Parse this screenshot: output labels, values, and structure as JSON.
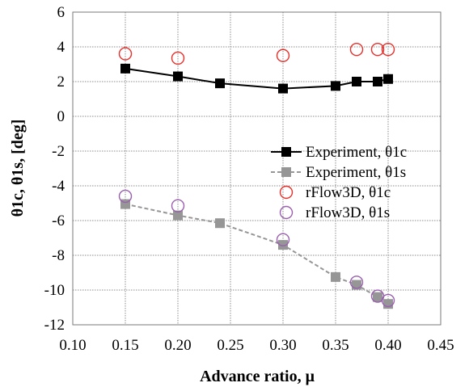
{
  "chart_data": {
    "type": "scatter",
    "xlabel": "Advance ratio, μ",
    "ylabel": "θ1c, θ1s, [deg]",
    "xlim": [
      0.1,
      0.45
    ],
    "ylim": [
      -12,
      6
    ],
    "xticks": [
      "0.10",
      "0.15",
      "0.20",
      "0.25",
      "0.30",
      "0.35",
      "0.40",
      "0.45"
    ],
    "yticks": [
      "6",
      "4",
      "2",
      "0",
      "-2",
      "-4",
      "-6",
      "-8",
      "-10",
      "-12"
    ],
    "grid": true,
    "legend_position": "right-center",
    "series": [
      {
        "name": "Experiment, θ1c",
        "style": "line-square",
        "color": "#000000",
        "x": [
          0.15,
          0.2,
          0.24,
          0.3,
          0.35,
          0.37,
          0.39,
          0.4
        ],
        "y": [
          2.75,
          2.3,
          1.9,
          1.6,
          1.75,
          2.0,
          2.0,
          2.15
        ]
      },
      {
        "name": "Experiment, θ1s",
        "style": "dashed-square",
        "color": "#969696",
        "x": [
          0.15,
          0.2,
          0.24,
          0.3,
          0.35,
          0.37,
          0.39,
          0.4
        ],
        "y": [
          -5.05,
          -5.7,
          -6.15,
          -7.4,
          -9.25,
          -9.7,
          -10.4,
          -10.8
        ]
      },
      {
        "name": "rFlow3D, θ1c",
        "style": "open-circle",
        "color": "#e8302b",
        "x": [
          0.15,
          0.2,
          0.3,
          0.37,
          0.39,
          0.4
        ],
        "y": [
          3.6,
          3.35,
          3.5,
          3.85,
          3.85,
          3.85
        ]
      },
      {
        "name": "rFlow3D, θ1s",
        "style": "open-circle",
        "color": "#9a5fb0",
        "x": [
          0.15,
          0.2,
          0.3,
          0.37,
          0.39,
          0.4
        ],
        "y": [
          -4.6,
          -5.15,
          -7.1,
          -9.55,
          -10.35,
          -10.6
        ]
      }
    ]
  }
}
